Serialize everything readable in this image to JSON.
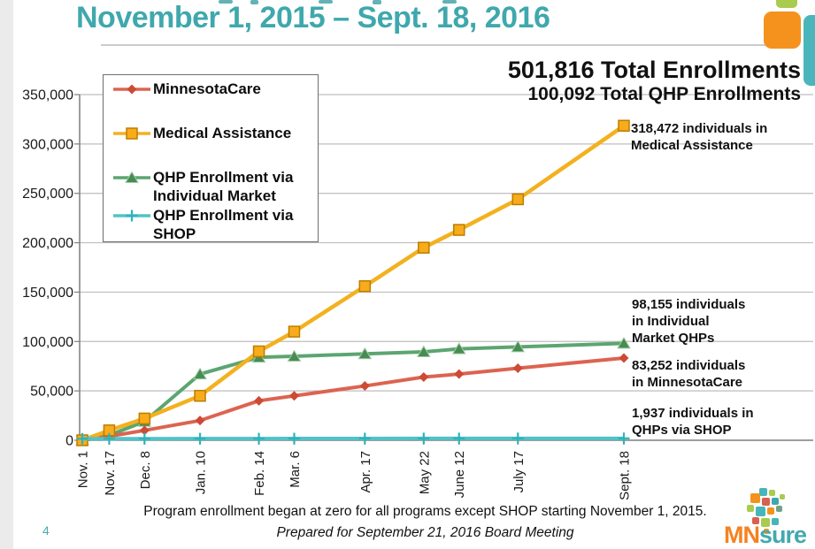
{
  "slide": {
    "title": "November 1, 2015 – Sept. 18, 2016",
    "page_number": "4",
    "note": "Program enrollment began at zero for all programs except SHOP starting November 1, 2015.",
    "prepared": "Prepared for September 21, 2016 Board Meeting",
    "logo_mn": "MN",
    "logo_sure": "sure"
  },
  "totals": {
    "total_enrollments": "501,816 Total Enrollments",
    "total_qhp_enrollments": "100,092 Total QHP Enrollments"
  },
  "annotations": {
    "medical_assistance": "318,472 individuals in\nMedical Assistance",
    "individual_qhp": "98,155 individuals\nin Individual\nMarket QHPs",
    "minnesotacare": "83,252 individuals\nin MinnesotaCare",
    "shop": "1,937 individuals in\nQHPs via SHOP"
  },
  "colors": {
    "accent_teal": "#3FA8AD",
    "grid": "#BEBEBE",
    "axis": "#7F7F7F",
    "logo_orange": "#F58220"
  },
  "chart_data": {
    "type": "line",
    "title": "",
    "xlabel": "",
    "ylabel": "",
    "grid": true,
    "legend_position": "top-left",
    "ylim": [
      0,
      350000
    ],
    "y_ticks": [
      {
        "v": 0,
        "label": "0"
      },
      {
        "v": 50000,
        "label": "50,000"
      },
      {
        "v": 100000,
        "label": "100,000"
      },
      {
        "v": 150000,
        "label": "150,000"
      },
      {
        "v": 200000,
        "label": "200,000"
      },
      {
        "v": 250000,
        "label": "250,000"
      },
      {
        "v": 300000,
        "label": "300,000"
      },
      {
        "v": 350000,
        "label": "350,000"
      }
    ],
    "categories": [
      "Nov. 1",
      "Nov. 17",
      "Dec. 8",
      "Jan. 10",
      "Feb. 14",
      "Mar. 6",
      "Apr. 17",
      "May 22",
      "June 12",
      "July 17",
      "Sept. 18"
    ],
    "x_day_offsets": [
      0,
      16,
      37,
      70,
      105,
      126,
      168,
      203,
      224,
      259,
      322
    ],
    "series": [
      {
        "name": "MinnesotaCare",
        "legend_label": "MinnesotaCare",
        "color": "#DC6450",
        "marker": "diamond",
        "marker_fill": "#CD4A35",
        "marker_stroke": "#CD4A35",
        "values": [
          0,
          4000,
          10000,
          20000,
          40000,
          45000,
          55000,
          64000,
          67000,
          73000,
          83252
        ]
      },
      {
        "name": "Medical Assistance",
        "legend_label": "Medical Assistance",
        "color": "#F3B11F",
        "marker": "square",
        "marker_fill": "#F8AC1B",
        "marker_stroke": "#BD7D00",
        "values": [
          0,
          10000,
          22000,
          45000,
          90000,
          110000,
          156000,
          195000,
          213000,
          244000,
          318472
        ]
      },
      {
        "name": "QHP Enrollment via Individual Market",
        "legend_label": "QHP Enrollment via\nIndividual Market",
        "color": "#5CA570",
        "marker": "triangle",
        "marker_fill": "#478C52",
        "marker_stroke": "#A3CBA6",
        "values": [
          0,
          5000,
          19000,
          67000,
          84000,
          85000,
          87500,
          89500,
          92500,
          94500,
          98155
        ]
      },
      {
        "name": "QHP Enrollment via SHOP",
        "legend_label": "QHP Enrollment via\nSHOP",
        "color": "#50C3C8",
        "marker": "plus",
        "marker_fill": "#2EB3BA",
        "marker_stroke": "#2EB3BA",
        "values": [
          1500,
          1550,
          1600,
          1650,
          1700,
          1750,
          1800,
          1850,
          1900,
          1925,
          1937
        ]
      }
    ]
  }
}
